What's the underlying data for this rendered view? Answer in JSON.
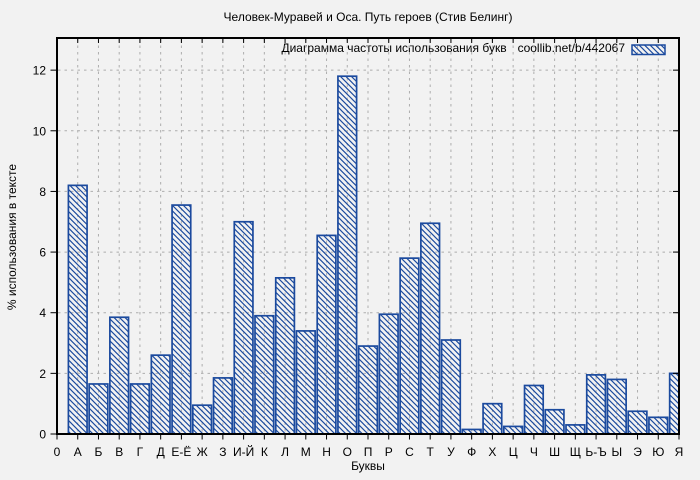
{
  "title": "Человек-Муравей и Оса. Путь героев (Стив Белинг)",
  "legend": {
    "label": "Диаграмма частоты использования букв",
    "source": "coollib.net/b/442067",
    "swatch_icon": "hatched-box-swatch"
  },
  "colors": {
    "bar": "#1b4a9e",
    "background": "#f2f2f2",
    "grid": "#adadad",
    "axis": "#000000"
  },
  "chart_data": {
    "type": "bar",
    "title": "Человек-Муравей и Оса. Путь героев (Стив Белинг)",
    "legend_label": "Диаграмма частоты использования букв  coollib.net/b/442067",
    "xlabel": "Буквы",
    "ylabel": "% использования в тексте",
    "ylim": [
      0,
      13.06
    ],
    "yticks": [
      0,
      2,
      4,
      6,
      8,
      10,
      12
    ],
    "grid": true,
    "legend_position": "top-right-inside",
    "bar_style": "diagonal-hatch",
    "categories": [
      "0",
      "А",
      "Б",
      "В",
      "Г",
      "Д",
      "Е-Ё",
      "Ж",
      "З",
      "И-Й",
      "К",
      "Л",
      "М",
      "Н",
      "О",
      "П",
      "Р",
      "С",
      "Т",
      "У",
      "Ф",
      "Х",
      "Ц",
      "Ч",
      "Ш",
      "Щ",
      "Ь-Ъ",
      "Ы",
      "Э",
      "Ю",
      "Я"
    ],
    "values": [
      0,
      8.2,
      1.65,
      3.85,
      1.65,
      2.6,
      7.55,
      0.95,
      1.85,
      7.0,
      3.9,
      5.15,
      3.4,
      6.55,
      11.8,
      2.9,
      3.95,
      5.8,
      6.95,
      3.1,
      0.15,
      1.0,
      0.25,
      1.6,
      0.8,
      0.3,
      1.95,
      1.8,
      0.75,
      0.55,
      2.0
    ]
  }
}
